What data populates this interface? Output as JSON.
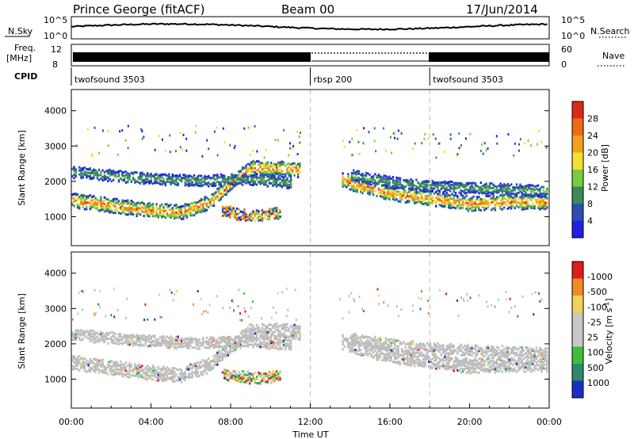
{
  "header": {
    "station": "Prince George (fitACF)",
    "beam": "Beam 00",
    "date": "17/Jun/2014"
  },
  "sidepanel": {
    "nsky_label": "N.Sky",
    "freq_label": "Freq.",
    "freq_unit": "[MHz]",
    "cpid_label": "CPID",
    "nsearch_label": "N.Search",
    "nave_label": "Nave",
    "noise_ticks": [
      "10^5",
      "10^0"
    ],
    "noise_ticks_right": [
      "10^5",
      "10^0"
    ],
    "freq_ticks": [
      "12",
      "8"
    ],
    "nave_ticks": [
      "60",
      "0"
    ]
  },
  "cpid": {
    "segments": [
      {
        "start_hour": 0,
        "label": "twofsound 3503"
      },
      {
        "start_hour": 12,
        "label": "rbsp 200"
      },
      {
        "start_hour": 18,
        "label": "twofsound 3503"
      }
    ]
  },
  "chart_data": [
    {
      "type": "heatmap",
      "panel": "power",
      "ylabel": "Slant Range [km]",
      "ylim": [
        180,
        4600
      ],
      "yticks": [
        1000,
        2000,
        3000,
        4000
      ],
      "colorbar_label": "Power [dB]",
      "colorbar_ticks": [
        "4",
        "8",
        "12",
        "16",
        "20",
        "24",
        "28"
      ],
      "colorbar_colors": [
        "#1f1fe6",
        "#2a4fb0",
        "#3a8a5a",
        "#7acc3c",
        "#f3e030",
        "#f7a020",
        "#f06a18",
        "#dd2818"
      ],
      "scatter_bands": [
        {
          "hours": [
            0.0,
            2.0,
            4.0,
            5.5,
            7.0,
            8.0,
            9.0,
            10.5,
            11.5
          ],
          "range_km": [
            1500,
            1350,
            1200,
            1150,
            1450,
            2000,
            2400,
            2400,
            2350
          ],
          "level": "high"
        },
        {
          "hours": [
            0.0,
            3.0,
            6.0,
            9.0,
            11.0
          ],
          "range_km": [
            2300,
            2150,
            2050,
            2100,
            2000
          ],
          "level": "mid"
        },
        {
          "hours": [
            7.5,
            8.5,
            9.5,
            10.5
          ],
          "range_km": [
            1200,
            1100,
            1050,
            1150
          ],
          "level": "mixed"
        },
        {
          "hours": [
            13.5,
            14.5,
            16.0,
            18.0,
            20.0,
            22.0,
            23.9
          ],
          "range_km": [
            2100,
            1900,
            1700,
            1550,
            1400,
            1450,
            1450
          ],
          "level": "high"
        },
        {
          "hours": [
            14.0,
            16.0,
            18.0,
            20.0,
            22.0,
            23.9
          ],
          "range_km": [
            2200,
            2000,
            1900,
            1850,
            1800,
            1750
          ],
          "level": "mid"
        }
      ]
    },
    {
      "type": "heatmap",
      "panel": "velocity",
      "ylabel": "Slant Range [km]",
      "ylim": [
        180,
        4600
      ],
      "yticks": [
        1000,
        2000,
        3000,
        4000
      ],
      "colorbar_label": "Velocity [m s^-1]",
      "colorbar_ticks": [
        "1000",
        "500",
        "100",
        "25",
        "-25",
        "-100",
        "-500",
        "-1000"
      ],
      "colorbar_colors": [
        "#1a2fc0",
        "#2a8a6a",
        "#3cbf3c",
        "#c8c8c8",
        "#c8c8c8",
        "#f3d25a",
        "#f48a24",
        "#e01c1c"
      ],
      "ground_scatter_color": "#bdbdbd",
      "xlabel": "Time UT",
      "xticks": [
        "00:00",
        "04:00",
        "08:00",
        "12:00",
        "16:00",
        "20:00",
        "00:00"
      ],
      "xlim_hours": [
        0,
        24
      ]
    }
  ]
}
